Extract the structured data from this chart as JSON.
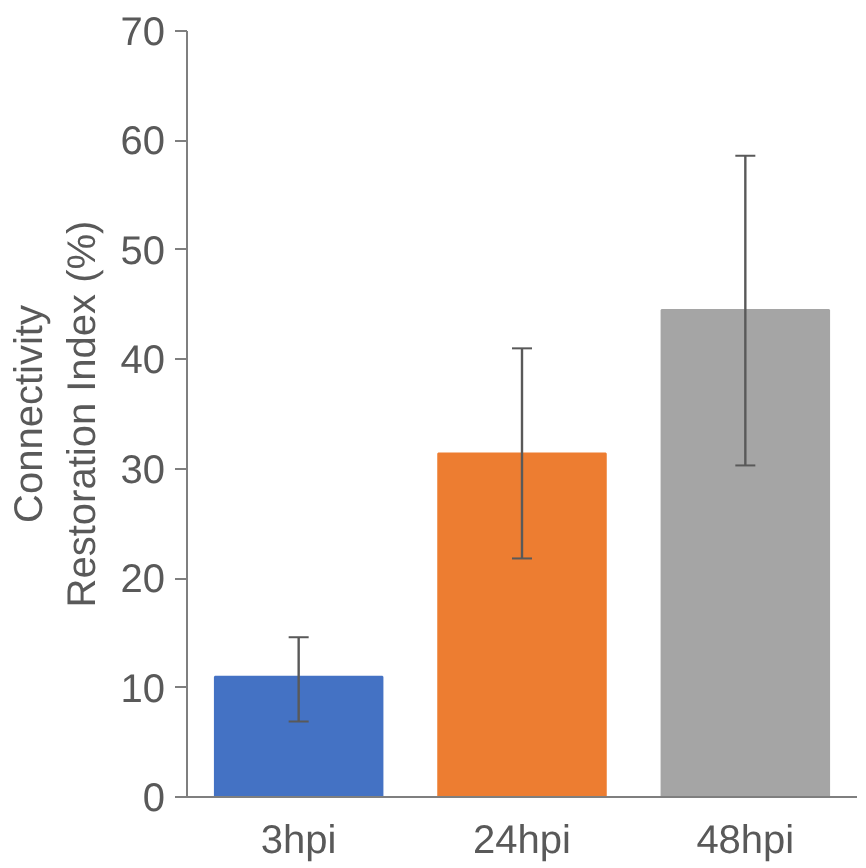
{
  "chart_data": {
    "type": "bar",
    "ylabel": "Connectivity\nRestoration Index (%)",
    "categories": [
      "3hpi",
      "24hpi",
      "48hpi"
    ],
    "values": [
      11.0,
      31.4,
      44.5
    ],
    "colors": [
      "#4472c4",
      "#ed7d31",
      "#a5a5a5"
    ],
    "errors": [
      [
        6.9,
        14.6
      ],
      [
        21.8,
        41.0
      ],
      [
        30.3,
        58.6
      ]
    ],
    "ylim": [
      0,
      70
    ],
    "yticks": [
      0,
      10,
      20,
      30,
      40,
      50,
      60,
      70
    ],
    "grid": false
  }
}
